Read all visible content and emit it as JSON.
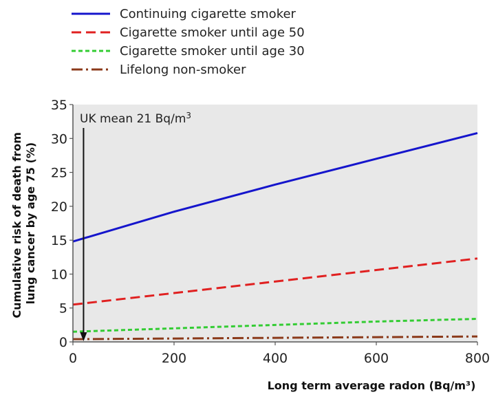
{
  "chart_data": {
    "type": "line",
    "xlabel": "Long term average radon (Bq/m³)",
    "ylabel_line1": "Cumulative risk of death from",
    "ylabel_line2": "lung cancer by age 75 (%)",
    "xlim": [
      0,
      800
    ],
    "ylim": [
      0,
      35
    ],
    "x_ticks": [
      0,
      200,
      400,
      600,
      800
    ],
    "y_ticks": [
      0,
      5,
      10,
      15,
      20,
      25,
      30,
      35
    ],
    "grid": false,
    "legend_position": "top-left",
    "series": [
      {
        "name": "Continuing cigarette smoker",
        "color": "#1515cc",
        "dash": "solid",
        "x": [
          0,
          200,
          400,
          600,
          800
        ],
        "y": [
          14.8,
          19.2,
          23.2,
          27.0,
          30.8
        ]
      },
      {
        "name": "Cigarette smoker until age 50",
        "color": "#e02020",
        "dash": "dash",
        "x": [
          0,
          200,
          400,
          600,
          800
        ],
        "y": [
          5.5,
          7.2,
          8.9,
          10.6,
          12.3
        ]
      },
      {
        "name": "Cigarette smoker until age 30",
        "color": "#33cc33",
        "dash": "short-dash",
        "x": [
          0,
          200,
          400,
          600,
          800
        ],
        "y": [
          1.5,
          2.0,
          2.5,
          3.0,
          3.4
        ]
      },
      {
        "name": "Lifelong non-smoker",
        "color": "#8b3a1a",
        "dash": "dash-dot",
        "x": [
          0,
          200,
          400,
          600,
          800
        ],
        "y": [
          0.4,
          0.5,
          0.6,
          0.7,
          0.8
        ]
      }
    ],
    "annotation": {
      "text": "UK mean 21 Bq/m",
      "superscript": "3",
      "x": 21
    }
  }
}
